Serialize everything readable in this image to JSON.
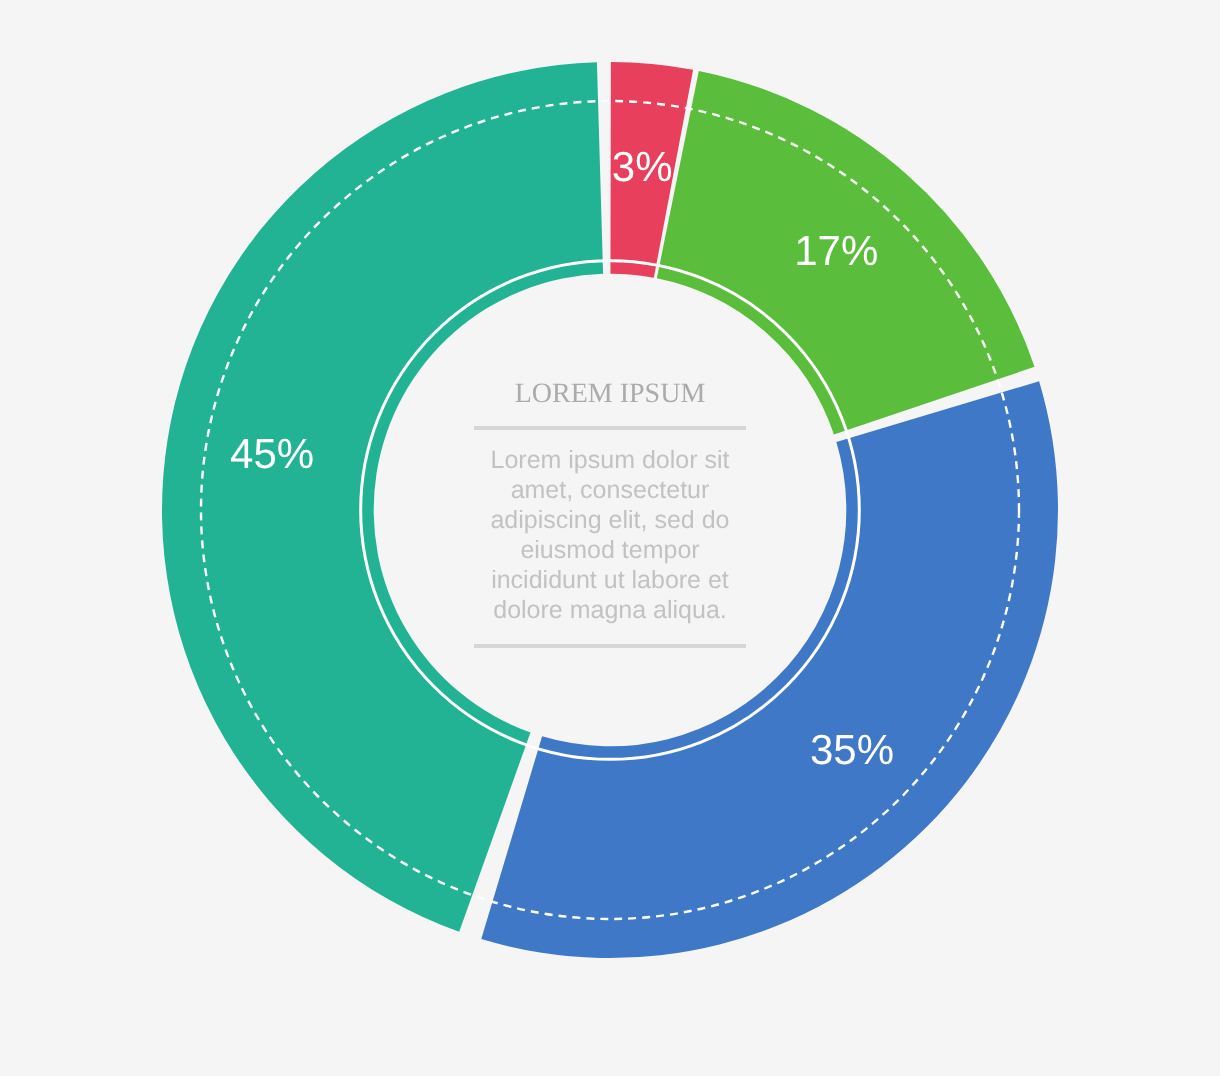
{
  "chart_data": {
    "type": "donut",
    "title": "LOREM IPSUM",
    "subtitle": "Lorem ipsum dolor sit amet, consectetur adipiscing elit, sed do eiusmod tempor incididunt ut labore et dolore magna aliqua.",
    "categories": [
      null,
      null,
      null,
      null
    ],
    "values": [
      3,
      17,
      35,
      45
    ],
    "colors": [
      "#e8405c",
      "#5bbd3c",
      "#3f78c6",
      "#22b394"
    ],
    "value_labels": [
      "3%",
      "17%",
      "35%",
      "45%"
    ]
  }
}
